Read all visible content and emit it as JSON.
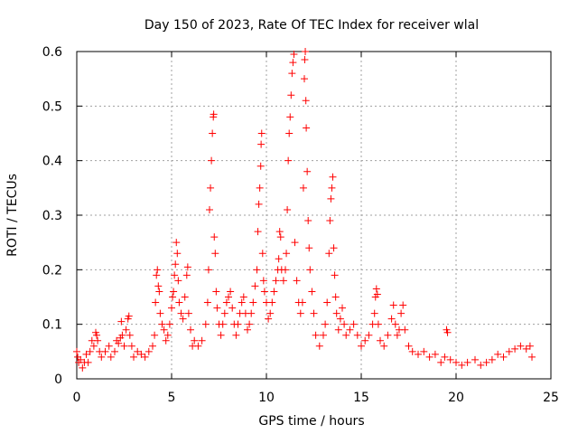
{
  "chart_data": {
    "type": "scatter",
    "title": "Day 150 of 2023, Rate Of TEC Index for receiver wlal",
    "xlabel": "GPS time / hours",
    "ylabel": "ROTI / TECUs",
    "xlim": [
      0,
      25
    ],
    "ylim": [
      0,
      0.6
    ],
    "xticks": [
      0,
      5,
      10,
      15,
      20,
      25
    ],
    "yticks": [
      0,
      0.1,
      0.2,
      0.3,
      0.4,
      0.5,
      0.6
    ],
    "grid": true,
    "marker": "+",
    "color": "#ff0000",
    "series": [
      {
        "points": [
          [
            0.0,
            0.05
          ],
          [
            0.05,
            0.04
          ],
          [
            0.1,
            0.03
          ],
          [
            0.2,
            0.035
          ],
          [
            0.3,
            0.02
          ],
          [
            0.4,
            0.03
          ],
          [
            0.5,
            0.045
          ],
          [
            0.6,
            0.03
          ],
          [
            0.7,
            0.05
          ],
          [
            0.8,
            0.07
          ],
          [
            0.9,
            0.06
          ],
          [
            1.0,
            0.085
          ],
          [
            1.05,
            0.08
          ],
          [
            1.1,
            0.07
          ],
          [
            1.2,
            0.05
          ],
          [
            1.3,
            0.04
          ],
          [
            1.5,
            0.05
          ],
          [
            1.7,
            0.06
          ],
          [
            1.8,
            0.04
          ],
          [
            2.0,
            0.05
          ],
          [
            2.1,
            0.07
          ],
          [
            2.2,
            0.065
          ],
          [
            2.3,
            0.075
          ],
          [
            2.35,
            0.105
          ],
          [
            2.4,
            0.08
          ],
          [
            2.5,
            0.06
          ],
          [
            2.6,
            0.09
          ],
          [
            2.7,
            0.11
          ],
          [
            2.75,
            0.115
          ],
          [
            2.8,
            0.08
          ],
          [
            2.9,
            0.06
          ],
          [
            3.0,
            0.04
          ],
          [
            3.2,
            0.05
          ],
          [
            3.4,
            0.045
          ],
          [
            3.6,
            0.04
          ],
          [
            3.8,
            0.05
          ],
          [
            4.0,
            0.06
          ],
          [
            4.1,
            0.08
          ],
          [
            4.15,
            0.14
          ],
          [
            4.2,
            0.19
          ],
          [
            4.25,
            0.2
          ],
          [
            4.3,
            0.17
          ],
          [
            4.35,
            0.16
          ],
          [
            4.4,
            0.12
          ],
          [
            4.5,
            0.1
          ],
          [
            4.6,
            0.09
          ],
          [
            4.7,
            0.07
          ],
          [
            4.8,
            0.08
          ],
          [
            4.9,
            0.1
          ],
          [
            5.0,
            0.13
          ],
          [
            5.05,
            0.15
          ],
          [
            5.1,
            0.16
          ],
          [
            5.15,
            0.19
          ],
          [
            5.2,
            0.21
          ],
          [
            5.25,
            0.25
          ],
          [
            5.3,
            0.23
          ],
          [
            5.35,
            0.18
          ],
          [
            5.4,
            0.14
          ],
          [
            5.5,
            0.12
          ],
          [
            5.6,
            0.11
          ],
          [
            5.7,
            0.15
          ],
          [
            5.8,
            0.19
          ],
          [
            5.85,
            0.205
          ],
          [
            5.9,
            0.12
          ],
          [
            6.0,
            0.09
          ],
          [
            6.1,
            0.06
          ],
          [
            6.2,
            0.07
          ],
          [
            6.4,
            0.06
          ],
          [
            6.6,
            0.07
          ],
          [
            6.8,
            0.1
          ],
          [
            6.9,
            0.14
          ],
          [
            6.95,
            0.2
          ],
          [
            7.0,
            0.31
          ],
          [
            7.05,
            0.35
          ],
          [
            7.1,
            0.4
          ],
          [
            7.15,
            0.45
          ],
          [
            7.2,
            0.48
          ],
          [
            7.22,
            0.485
          ],
          [
            7.25,
            0.26
          ],
          [
            7.3,
            0.23
          ],
          [
            7.35,
            0.16
          ],
          [
            7.4,
            0.13
          ],
          [
            7.5,
            0.1
          ],
          [
            7.6,
            0.08
          ],
          [
            7.7,
            0.1
          ],
          [
            7.8,
            0.12
          ],
          [
            7.9,
            0.14
          ],
          [
            8.0,
            0.15
          ],
          [
            8.1,
            0.16
          ],
          [
            8.2,
            0.13
          ],
          [
            8.3,
            0.1
          ],
          [
            8.4,
            0.08
          ],
          [
            8.5,
            0.1
          ],
          [
            8.6,
            0.12
          ],
          [
            8.7,
            0.14
          ],
          [
            8.8,
            0.15
          ],
          [
            8.9,
            0.12
          ],
          [
            9.0,
            0.09
          ],
          [
            9.1,
            0.1
          ],
          [
            9.2,
            0.12
          ],
          [
            9.3,
            0.14
          ],
          [
            9.4,
            0.17
          ],
          [
            9.5,
            0.2
          ],
          [
            9.55,
            0.27
          ],
          [
            9.6,
            0.32
          ],
          [
            9.65,
            0.35
          ],
          [
            9.7,
            0.39
          ],
          [
            9.72,
            0.43
          ],
          [
            9.75,
            0.45
          ],
          [
            9.8,
            0.23
          ],
          [
            9.85,
            0.18
          ],
          [
            9.9,
            0.16
          ],
          [
            10.0,
            0.14
          ],
          [
            10.1,
            0.11
          ],
          [
            10.2,
            0.12
          ],
          [
            10.3,
            0.14
          ],
          [
            10.4,
            0.16
          ],
          [
            10.5,
            0.18
          ],
          [
            10.6,
            0.2
          ],
          [
            10.65,
            0.22
          ],
          [
            10.7,
            0.27
          ],
          [
            10.75,
            0.26
          ],
          [
            10.8,
            0.2
          ],
          [
            10.9,
            0.18
          ],
          [
            11.0,
            0.2
          ],
          [
            11.05,
            0.23
          ],
          [
            11.1,
            0.31
          ],
          [
            11.15,
            0.4
          ],
          [
            11.2,
            0.45
          ],
          [
            11.25,
            0.48
          ],
          [
            11.3,
            0.52
          ],
          [
            11.35,
            0.56
          ],
          [
            11.4,
            0.58
          ],
          [
            11.45,
            0.595
          ],
          [
            11.5,
            0.25
          ],
          [
            11.6,
            0.18
          ],
          [
            11.7,
            0.14
          ],
          [
            11.8,
            0.12
          ],
          [
            11.9,
            0.14
          ],
          [
            11.95,
            0.35
          ],
          [
            12.0,
            0.55
          ],
          [
            12.02,
            0.585
          ],
          [
            12.05,
            0.6
          ],
          [
            12.08,
            0.51
          ],
          [
            12.1,
            0.46
          ],
          [
            12.15,
            0.38
          ],
          [
            12.2,
            0.29
          ],
          [
            12.25,
            0.24
          ],
          [
            12.3,
            0.2
          ],
          [
            12.4,
            0.16
          ],
          [
            12.5,
            0.12
          ],
          [
            12.6,
            0.08
          ],
          [
            12.8,
            0.06
          ],
          [
            13.0,
            0.08
          ],
          [
            13.1,
            0.1
          ],
          [
            13.2,
            0.14
          ],
          [
            13.3,
            0.23
          ],
          [
            13.35,
            0.29
          ],
          [
            13.4,
            0.33
          ],
          [
            13.45,
            0.35
          ],
          [
            13.5,
            0.37
          ],
          [
            13.55,
            0.24
          ],
          [
            13.6,
            0.19
          ],
          [
            13.65,
            0.15
          ],
          [
            13.7,
            0.12
          ],
          [
            13.8,
            0.09
          ],
          [
            13.9,
            0.11
          ],
          [
            14.0,
            0.13
          ],
          [
            14.1,
            0.1
          ],
          [
            14.2,
            0.08
          ],
          [
            14.4,
            0.09
          ],
          [
            14.6,
            0.1
          ],
          [
            14.8,
            0.08
          ],
          [
            15.0,
            0.06
          ],
          [
            15.2,
            0.07
          ],
          [
            15.4,
            0.08
          ],
          [
            15.6,
            0.1
          ],
          [
            15.7,
            0.12
          ],
          [
            15.75,
            0.15
          ],
          [
            15.8,
            0.165
          ],
          [
            15.85,
            0.155
          ],
          [
            15.9,
            0.1
          ],
          [
            16.0,
            0.07
          ],
          [
            16.2,
            0.06
          ],
          [
            16.4,
            0.08
          ],
          [
            16.6,
            0.11
          ],
          [
            16.7,
            0.135
          ],
          [
            16.8,
            0.1
          ],
          [
            16.9,
            0.08
          ],
          [
            17.0,
            0.09
          ],
          [
            17.1,
            0.12
          ],
          [
            17.2,
            0.135
          ],
          [
            17.3,
            0.09
          ],
          [
            17.5,
            0.06
          ],
          [
            17.7,
            0.05
          ],
          [
            18.0,
            0.045
          ],
          [
            18.3,
            0.05
          ],
          [
            18.6,
            0.04
          ],
          [
            18.9,
            0.045
          ],
          [
            19.2,
            0.03
          ],
          [
            19.4,
            0.04
          ],
          [
            19.5,
            0.09
          ],
          [
            19.55,
            0.085
          ],
          [
            19.7,
            0.035
          ],
          [
            20.0,
            0.03
          ],
          [
            20.3,
            0.025
          ],
          [
            20.6,
            0.03
          ],
          [
            21.0,
            0.035
          ],
          [
            21.3,
            0.025
          ],
          [
            21.6,
            0.03
          ],
          [
            21.9,
            0.035
          ],
          [
            22.2,
            0.045
          ],
          [
            22.5,
            0.04
          ],
          [
            22.8,
            0.05
          ],
          [
            23.1,
            0.055
          ],
          [
            23.4,
            0.06
          ],
          [
            23.7,
            0.055
          ],
          [
            23.9,
            0.06
          ],
          [
            24.0,
            0.04
          ]
        ]
      }
    ]
  }
}
